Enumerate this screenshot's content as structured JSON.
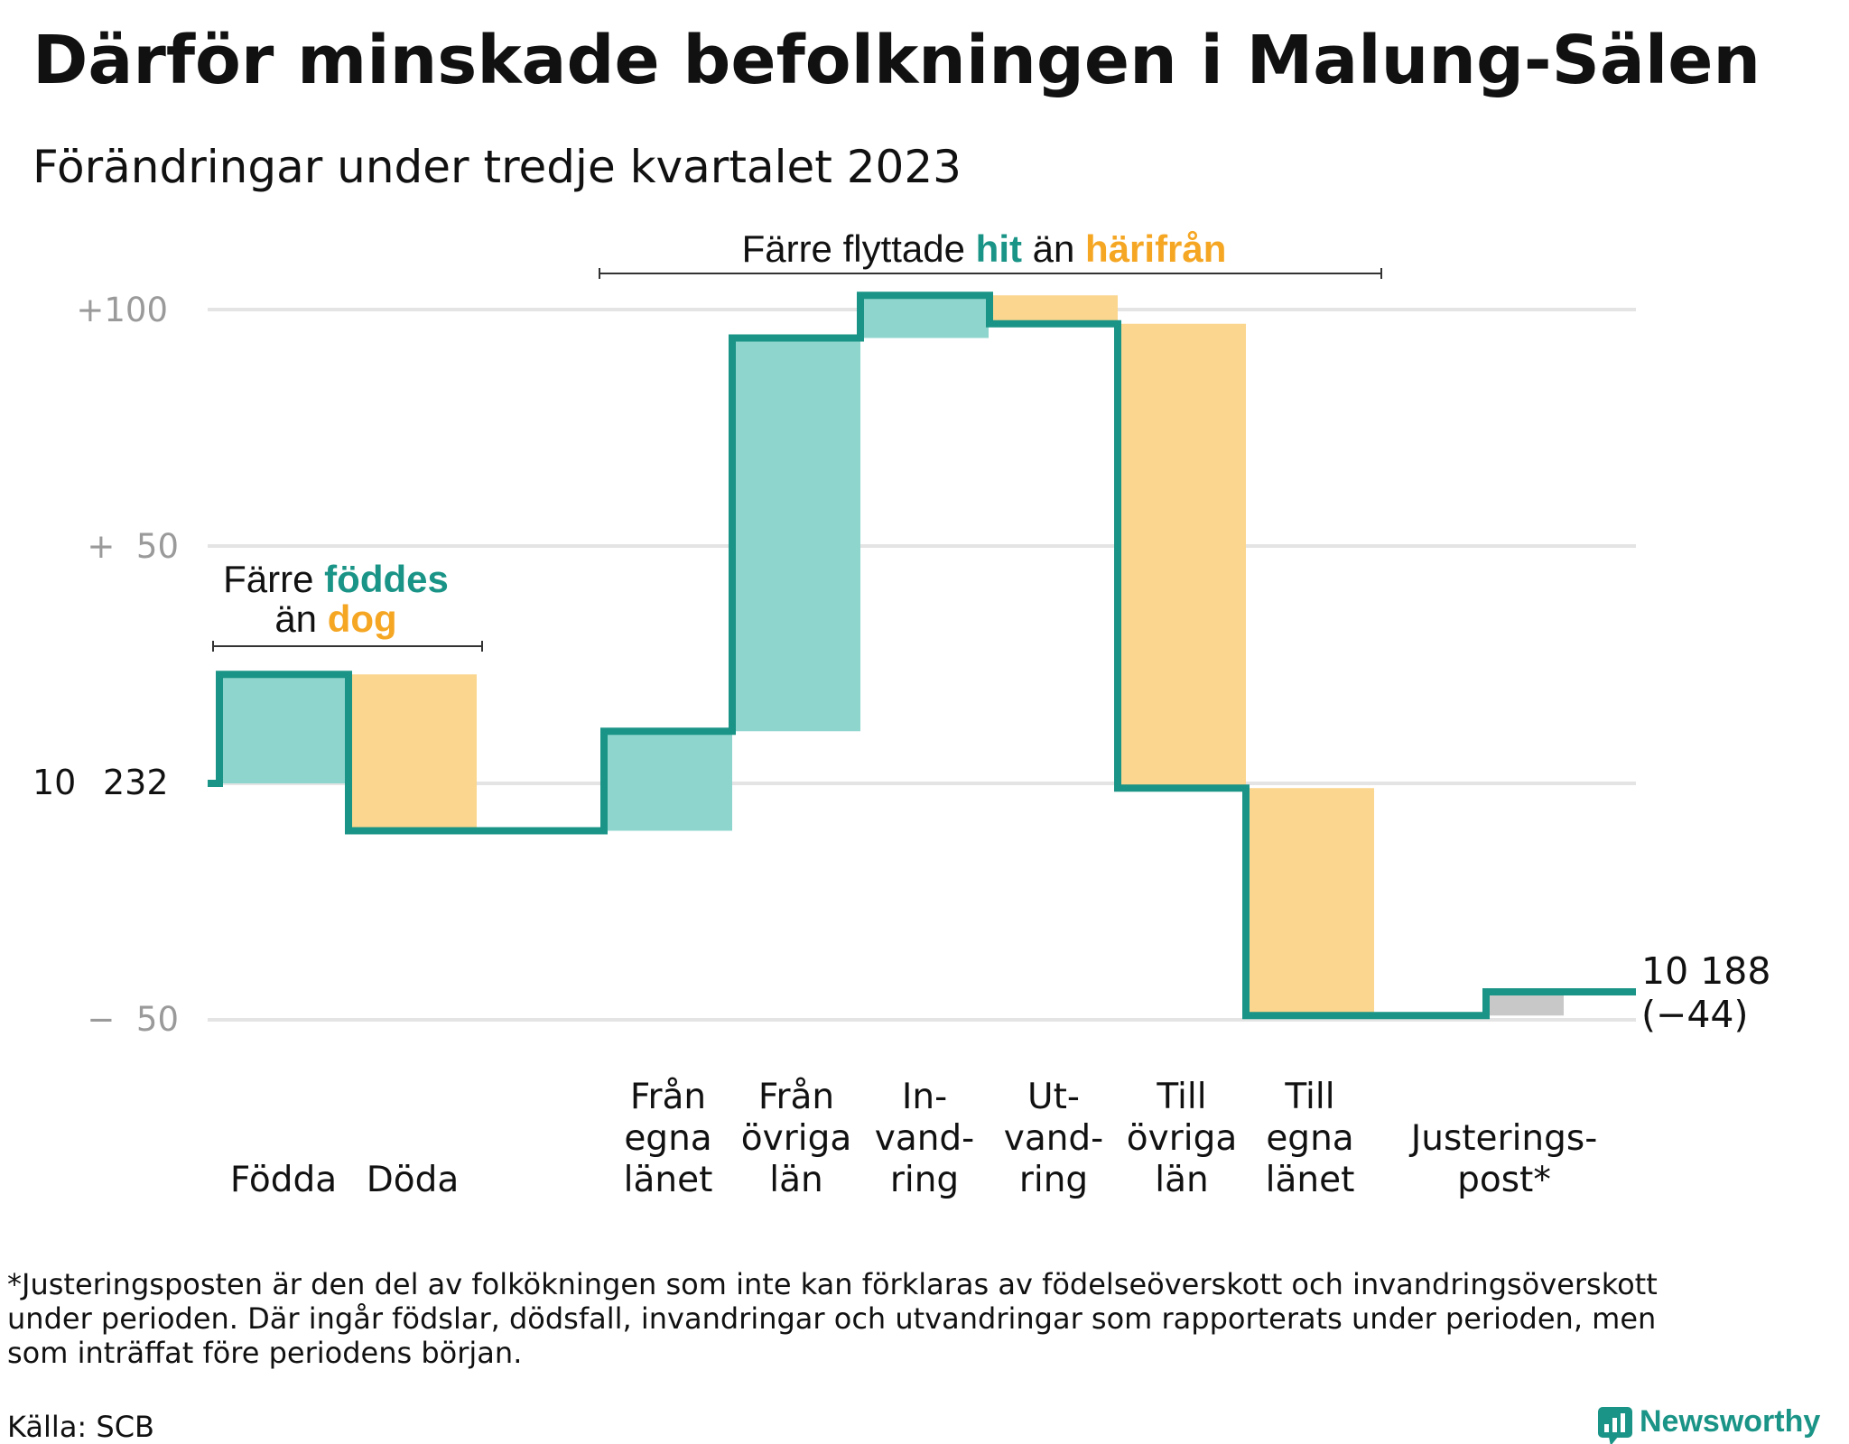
{
  "header": {
    "title": "Därför minskade befolkningen i Malung-Sälen",
    "subtitle": "Förändringar under tredje kvartalet 2023"
  },
  "annotations": {
    "births_deaths": {
      "line1_pre": "Färre ",
      "line1_hl": "föddes",
      "line2_pre": "än ",
      "line2_hl": "dog"
    },
    "migration": {
      "pre": "Färre flyttade ",
      "hl1": "hit",
      "mid": " än ",
      "hl2": "härifrån"
    }
  },
  "y_tick_labels": {
    "top": "+100",
    "mid": "+  50",
    "base_thousands": "10",
    "base_rest": "232",
    "bottom": "−  50"
  },
  "end_label": {
    "value": "10 188",
    "change": "(−44)"
  },
  "footnote": {
    "lines": [
      "*Justeringsposten är den del av folkökningen som inte kan förklaras av födelseöverskott och invandringsöverskott",
      "under perioden. Där ingår födslar, dödsfall, invandringar och utvandringar som rapporterats under perioden, men",
      "som inträffat före periodens början."
    ],
    "source": "Källa: SCB"
  },
  "brand": {
    "name": "Newsworthy",
    "logo_icon": "bar-chart-speech-bubble-icon"
  },
  "colors": {
    "teal_line": "#1a9486",
    "teal_fill": "#8ed5cd",
    "orange_fill": "#fbd68e",
    "orange_text": "#f5a623",
    "gray_fill": "#c8c8c8",
    "grid": "#e4e4e4"
  },
  "chart_data": {
    "type": "waterfall",
    "start_value": 10232,
    "end_value": 10188,
    "net_change": -44,
    "y_axis_relative_to_start": true,
    "ylim": [
      -50,
      100
    ],
    "y_ticks": [
      100,
      50,
      0,
      -50
    ],
    "grid": true,
    "steps": [
      {
        "label_lines": [
          "Födda"
        ],
        "value": 23,
        "kind": "increase",
        "cum_after": 23
      },
      {
        "label_lines": [
          "Döda"
        ],
        "value": -33,
        "kind": "decrease",
        "cum_after": -10
      },
      {
        "label_lines": [
          "Från",
          "egna",
          "länet"
        ],
        "value": 21,
        "kind": "increase",
        "cum_after": 11
      },
      {
        "label_lines": [
          "Från",
          "övriga",
          "län"
        ],
        "value": 83,
        "kind": "increase",
        "cum_after": 94
      },
      {
        "label_lines": [
          "In-",
          "vand-",
          "ring"
        ],
        "value": 9,
        "kind": "increase",
        "cum_after": 103
      },
      {
        "label_lines": [
          "Ut-",
          "vand-",
          "ring"
        ],
        "value": -6,
        "kind": "decrease",
        "cum_after": 97
      },
      {
        "label_lines": [
          "Till",
          "övriga",
          "län"
        ],
        "value": -98,
        "kind": "decrease",
        "cum_after": -1
      },
      {
        "label_lines": [
          "Till",
          "egna",
          "länet"
        ],
        "value": -48,
        "kind": "decrease",
        "cum_after": -49
      },
      {
        "label_lines": [
          "Justerings-",
          "post*"
        ],
        "value": 5,
        "kind": "adjustment",
        "cum_after": -44
      }
    ]
  }
}
